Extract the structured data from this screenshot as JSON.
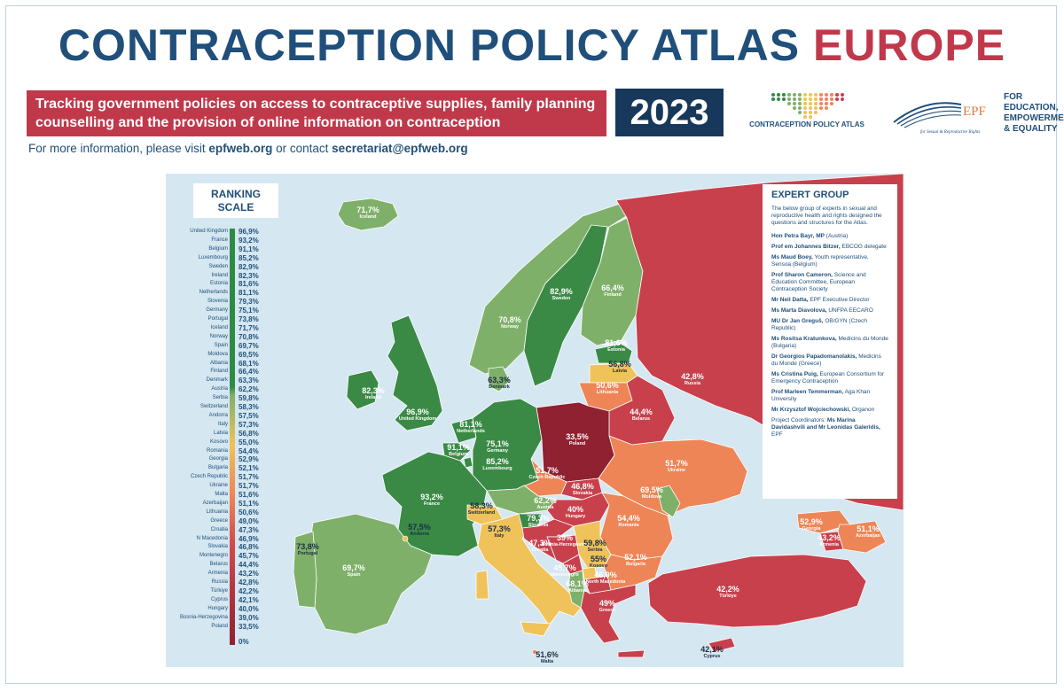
{
  "header": {
    "title_main": "CONTRACEPTION POLICY ATLAS",
    "title_accent": "EUROPE",
    "banner": "Tracking government policies on access to contraceptive supplies, family planning counselling and the provision of online information on contraception",
    "year": "2023",
    "contact_prefix": "For more information, please visit",
    "contact_site": "epfweb.org",
    "contact_mid": "or contact",
    "contact_email": "secretariat@epfweb.org"
  },
  "logos": {
    "atlas_logo_text": "CONTRACEPTION POLICY ATLAS",
    "epf_acronym": "EPF",
    "epf_tagline": "for Sexual & Reproductive Rights",
    "epf_motto": [
      "FOR EDUCATION,",
      "EMPOWERMENT",
      "& EQUALITY"
    ]
  },
  "scale": {
    "title": [
      "RANKING",
      "SCALE"
    ],
    "zero_label": "0%",
    "items": [
      {
        "country": "United Kingdom",
        "value": "96,9%"
      },
      {
        "country": "France",
        "value": "93,2%"
      },
      {
        "country": "Belgium",
        "value": "91,1%"
      },
      {
        "country": "Luxembourg",
        "value": "85,2%"
      },
      {
        "country": "Sweden",
        "value": "82,9%"
      },
      {
        "country": "Ireland",
        "value": "82,3%"
      },
      {
        "country": "Estonia",
        "value": "81,6%"
      },
      {
        "country": "Netherlands",
        "value": "81,1%"
      },
      {
        "country": "Slovenia",
        "value": "79,3%"
      },
      {
        "country": "Germany",
        "value": "75,1%"
      },
      {
        "country": "Portugal",
        "value": "73,8%"
      },
      {
        "country": "Iceland",
        "value": "71,7%"
      },
      {
        "country": "Norway",
        "value": "70,8%"
      },
      {
        "country": "Spain",
        "value": "69,7%"
      },
      {
        "country": "Moldova",
        "value": "69,5%"
      },
      {
        "country": "Albania",
        "value": "68,1%"
      },
      {
        "country": "Finland",
        "value": "66,4%"
      },
      {
        "country": "Denmark",
        "value": "63,3%"
      },
      {
        "country": "Austria",
        "value": "62,2%"
      },
      {
        "country": "Serbia",
        "value": "59,8%"
      },
      {
        "country": "Switzerland",
        "value": "58,3%"
      },
      {
        "country": "Andorra",
        "value": "57,5%"
      },
      {
        "country": "Italy",
        "value": "57,3%"
      },
      {
        "country": "Latvia",
        "value": "56,8%"
      },
      {
        "country": "Kosovo",
        "value": "55,0%"
      },
      {
        "country": "Romania",
        "value": "54,4%"
      },
      {
        "country": "Georgia",
        "value": "52,9%"
      },
      {
        "country": "Bulgaria",
        "value": "52,1%"
      },
      {
        "country": "Czech Republic",
        "value": "51,7%"
      },
      {
        "country": "Ukraine",
        "value": "51,7%"
      },
      {
        "country": "Malta",
        "value": "51,6%"
      },
      {
        "country": "Azerbaijan",
        "value": "51,1%"
      },
      {
        "country": "Lithuania",
        "value": "50,6%"
      },
      {
        "country": "Greece",
        "value": "49,0%"
      },
      {
        "country": "Croatia",
        "value": "47,3%"
      },
      {
        "country": "N Macedonia",
        "value": "46,9%"
      },
      {
        "country": "Slovakia",
        "value": "46,8%"
      },
      {
        "country": "Montenegro",
        "value": "45,7%"
      },
      {
        "country": "Belarus",
        "value": "44,4%"
      },
      {
        "country": "Armenia",
        "value": "43,2%"
      },
      {
        "country": "Russia",
        "value": "42,8%"
      },
      {
        "country": "Türkiye",
        "value": "42,2%"
      },
      {
        "country": "Cyprus",
        "value": "42,1%"
      },
      {
        "country": "Hungary",
        "value": "40,0%"
      },
      {
        "country": "Bosnia-Herzegovina",
        "value": "39,0%"
      },
      {
        "country": "Poland",
        "value": "33,5%"
      }
    ]
  },
  "map_labels": [
    {
      "id": "iceland",
      "pct": "71,7%",
      "name": "Iceland",
      "color": "#7fb06a"
    },
    {
      "id": "norway",
      "pct": "70,8%",
      "name": "Norway",
      "color": "#7fb06a"
    },
    {
      "id": "sweden",
      "pct": "82,9%",
      "name": "Sweden",
      "color": "#3a8a45"
    },
    {
      "id": "finland",
      "pct": "66,4%",
      "name": "Finland",
      "color": "#7fb06a"
    },
    {
      "id": "estonia",
      "pct": "81,6%",
      "name": "Estonia",
      "color": "#3a8a45"
    },
    {
      "id": "latvia",
      "pct": "56,8%",
      "name": "Latvia",
      "color": "#f0c25a"
    },
    {
      "id": "lithuania",
      "pct": "50,6%",
      "name": "Lithuania",
      "color": "#ee8556"
    },
    {
      "id": "denmark",
      "pct": "63,3%",
      "name": "Denmark",
      "color": "#7fb06a"
    },
    {
      "id": "ireland",
      "pct": "82,3%",
      "name": "Ireland",
      "color": "#3a8a45"
    },
    {
      "id": "uk",
      "pct": "96,9%",
      "name": "United Kingdom",
      "color": "#3a8a45"
    },
    {
      "id": "netherlands",
      "pct": "81,1%",
      "name": "Netherlands",
      "color": "#3a8a45"
    },
    {
      "id": "belgium",
      "pct": "91,1%",
      "name": "Belgium",
      "color": "#3a8a45"
    },
    {
      "id": "luxembourg",
      "pct": "85,2%",
      "name": "Luxembourg",
      "color": "#3a8a45"
    },
    {
      "id": "germany",
      "pct": "75,1%",
      "name": "Germany",
      "color": "#3a8a45"
    },
    {
      "id": "poland",
      "pct": "33,5%",
      "name": "Poland",
      "color": "#8f2130"
    },
    {
      "id": "belarus",
      "pct": "44,4%",
      "name": "Belarus",
      "color": "#c8404c"
    },
    {
      "id": "russia",
      "pct": "42,8%",
      "name": "Russia",
      "color": "#c8404c"
    },
    {
      "id": "ukraine",
      "pct": "51,7%",
      "name": "Ukraine",
      "color": "#ee8556"
    },
    {
      "id": "czech",
      "pct": "51,7%",
      "name": "Czech Republic",
      "color": "#ee8556"
    },
    {
      "id": "slovakia",
      "pct": "46,8%",
      "name": "Slovakia",
      "color": "#c8404c"
    },
    {
      "id": "austria",
      "pct": "62,2%",
      "name": "Austria",
      "color": "#7fb06a"
    },
    {
      "id": "hungary",
      "pct": "40%",
      "name": "Hungary",
      "color": "#c8404c"
    },
    {
      "id": "moldova",
      "pct": "69,5%",
      "name": "Moldova",
      "color": "#7fb06a"
    },
    {
      "id": "romania",
      "pct": "54,4%",
      "name": "Romania",
      "color": "#ee8556"
    },
    {
      "id": "france",
      "pct": "93,2%",
      "name": "France",
      "color": "#3a8a45"
    },
    {
      "id": "switzerland",
      "pct": "58,3%",
      "name": "Switzerland",
      "color": "#f0c25a"
    },
    {
      "id": "slovenia",
      "pct": "79,3%",
      "name": "Slovenia",
      "color": "#3a8a45"
    },
    {
      "id": "croatia",
      "pct": "47,3%",
      "name": "Croatia",
      "color": "#c8404c"
    },
    {
      "id": "bosnia",
      "pct": "39%",
      "name": "Bosnia-Herzegovina",
      "color": "#c8404c"
    },
    {
      "id": "serbia",
      "pct": "59,8%",
      "name": "Serbia",
      "color": "#f0c25a"
    },
    {
      "id": "montenegro",
      "pct": "45,7%",
      "name": "Montenegro",
      "color": "#c8404c"
    },
    {
      "id": "kosovo",
      "pct": "55%",
      "name": "Kosovo",
      "color": "#f0c25a"
    },
    {
      "id": "albania",
      "pct": "68,1%",
      "name": "Albania",
      "color": "#7fb06a"
    },
    {
      "id": "nmacedonia",
      "pct": "46,9%",
      "name": "North Macedonia",
      "color": "#c8404c"
    },
    {
      "id": "bulgaria",
      "pct": "52,1%",
      "name": "Bulgaria",
      "color": "#ee8556"
    },
    {
      "id": "greece",
      "pct": "49%",
      "name": "Greece",
      "color": "#c8404c"
    },
    {
      "id": "andorra",
      "pct": "57,5%",
      "name": "Andorra",
      "color": "#f0c25a"
    },
    {
      "id": "italy",
      "pct": "57,3%",
      "name": "Italy",
      "color": "#f0c25a"
    },
    {
      "id": "portugal",
      "pct": "73,8%",
      "name": "Portugal",
      "color": "#7fb06a"
    },
    {
      "id": "spain",
      "pct": "69,7%",
      "name": "Spain",
      "color": "#7fb06a"
    },
    {
      "id": "malta",
      "pct": "51,6%",
      "name": "Malta",
      "color": "#ee8556"
    },
    {
      "id": "georgia",
      "pct": "52,9%",
      "name": "Georgia",
      "color": "#ee8556"
    },
    {
      "id": "armenia",
      "pct": "43,2%",
      "name": "Armenia",
      "color": "#c8404c"
    },
    {
      "id": "azerbaijan",
      "pct": "51,1%",
      "name": "Azerbaijan",
      "color": "#ee8556"
    },
    {
      "id": "turkiye",
      "pct": "42,2%",
      "name": "Türkiye",
      "color": "#c8404c"
    },
    {
      "id": "cyprus",
      "pct": "42,1%",
      "name": "Cyprus",
      "color": "#c8404c"
    }
  ],
  "expert_group": {
    "title": "EXPERT GROUP",
    "intro": "The below group of experts in sexual and reproductive health and rights designed the questions and structures for the Atlas.",
    "members": [
      {
        "name": "Hon Petra Bayr, MP",
        "role": "(Austria)"
      },
      {
        "name": "Prof em Johannes Bitzer,",
        "role": "EBCOG delegate"
      },
      {
        "name": "Ms Maud Boey,",
        "role": "Youth representative, Sensoa (Belgium)"
      },
      {
        "name": "Prof Sharon Cameron,",
        "role": "Science and Education Committee, European Contraception Society"
      },
      {
        "name": "Mr Neil Datta,",
        "role": "EPF Executive Director"
      },
      {
        "name": "Ms Marta Diavolova,",
        "role": "UNFPA EECARO"
      },
      {
        "name": "MU Dr Jan Greguš,",
        "role": "OB/GYN (Czech Republic)"
      },
      {
        "name": "Ms Rositsa Kratunkova,",
        "role": "Medicins du Monde (Bulgaria)"
      },
      {
        "name": "Dr Georgios Papadomanolakis,",
        "role": "Medicins du Monde (Greece)"
      },
      {
        "name": "Ms Cristina Puig,",
        "role": "European Consortium for Emergency Contraception"
      },
      {
        "name": "Prof Marleen Temmerman,",
        "role": "Aga Khan University"
      },
      {
        "name": "Mr Krzysztof Wojciechowski,",
        "role": "Organon"
      }
    ],
    "coordinators_prefix": "Project Coordinators:",
    "coordinators_names": "Ms Marina Davidashvili and Mr Leonidas Galeridis,",
    "coordinators_org": "EPF"
  }
}
